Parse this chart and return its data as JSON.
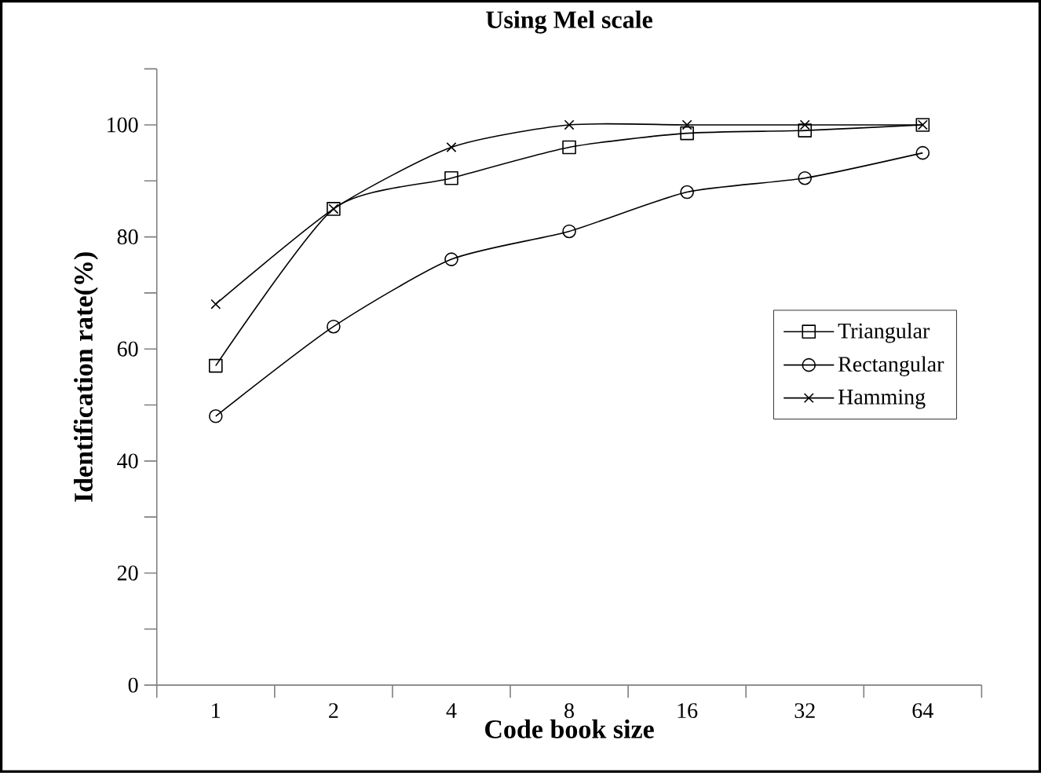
{
  "chart_data": {
    "type": "line",
    "title": "Using Mel scale",
    "xlabel": "Code book size",
    "ylabel": "Identification rate(%)",
    "categories": [
      "1",
      "2",
      "4",
      "8",
      "16",
      "32",
      "64"
    ],
    "series": [
      {
        "name": "Triangular",
        "color": "#000000",
        "marker": "square",
        "values": [
          57,
          85,
          90.5,
          96,
          98.5,
          99,
          100
        ]
      },
      {
        "name": "Rectangular",
        "color": "#000000",
        "marker": "circle",
        "values": [
          48,
          64,
          76,
          81,
          88,
          90.5,
          95
        ]
      },
      {
        "name": "Hamming",
        "color": "#000000",
        "marker": "cross",
        "values": [
          68,
          85,
          96,
          100,
          100,
          100,
          100
        ]
      }
    ],
    "ylim": [
      0,
      110
    ],
    "yticks": [
      0,
      {
        "value": 10,
        "label": null
      },
      20,
      {
        "value": 30,
        "label": null
      },
      40,
      {
        "value": 50,
        "label": null
      },
      60,
      {
        "value": 70,
        "label": null
      },
      80,
      {
        "value": 90,
        "label": null
      },
      100,
      {
        "value": 110,
        "label": null
      }
    ],
    "grid": false,
    "legend": "right",
    "line_style": "solid"
  }
}
